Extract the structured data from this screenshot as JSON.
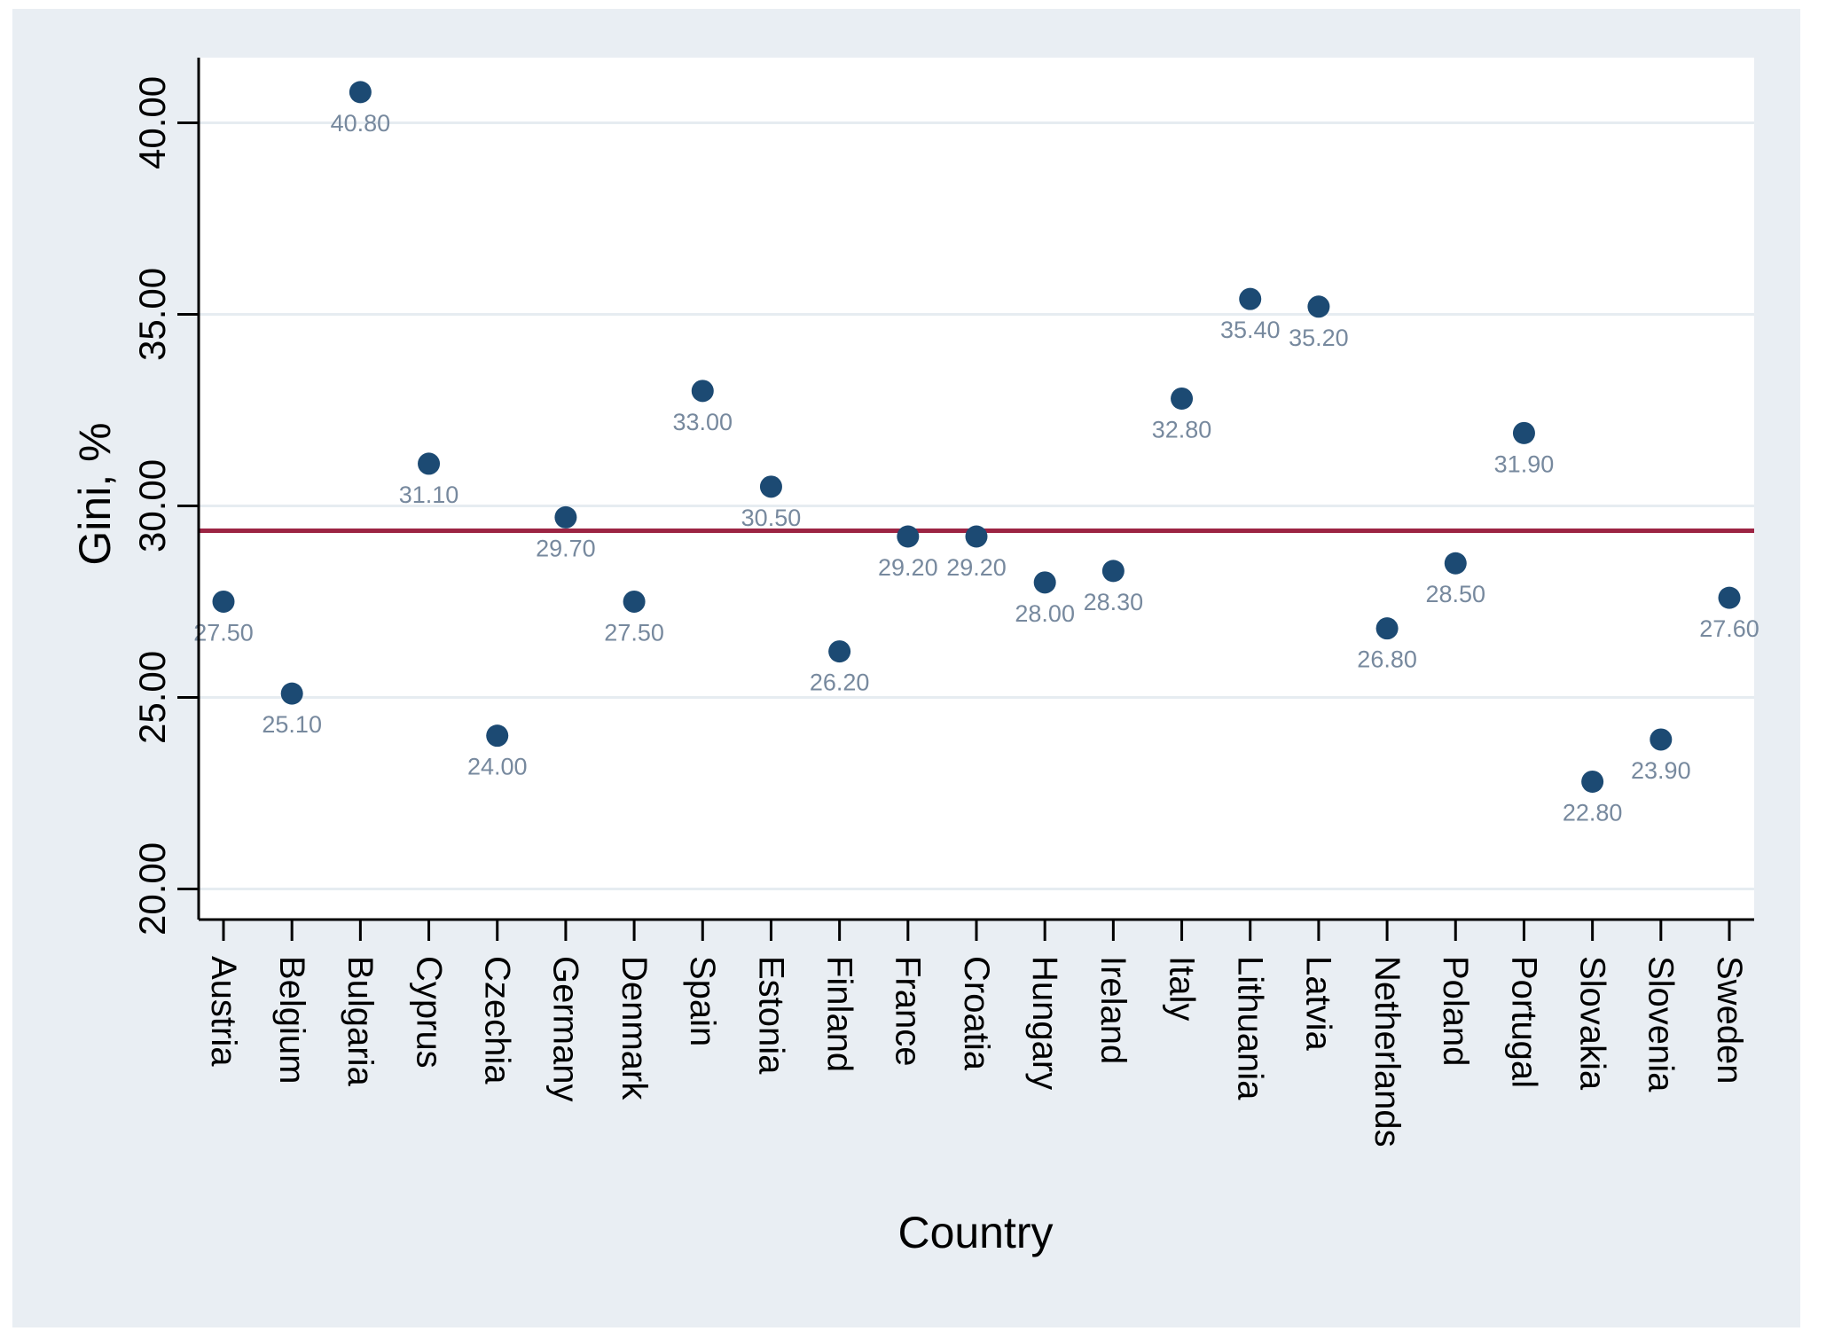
{
  "figure": {
    "background": "#ffffff",
    "panel_background": "#e9eef3",
    "plot_background": "#ffffff"
  },
  "chart_data": {
    "type": "scatter",
    "title": "",
    "xlabel": "Country",
    "ylabel": "Gini, %",
    "categories": [
      "Austria",
      "Belgium",
      "Bulgaria",
      "Cyprus",
      "Czechia",
      "Germany",
      "Denmark",
      "Spain",
      "Estonia",
      "Finland",
      "France",
      "Croatia",
      "Hungary",
      "Ireland",
      "Italy",
      "Lithuania",
      "Latvia",
      "Netherlands",
      "Poland",
      "Portugal",
      "Slovakia",
      "Slovenia",
      "Sweden"
    ],
    "values": [
      27.5,
      25.1,
      40.8,
      31.1,
      24.0,
      29.7,
      27.5,
      33.0,
      30.5,
      26.2,
      29.2,
      29.2,
      28.0,
      28.3,
      32.8,
      35.4,
      35.2,
      26.8,
      28.5,
      31.9,
      22.8,
      23.9,
      27.6
    ],
    "point_labels": [
      "27.50",
      "25.10",
      "40.80",
      "31.10",
      "24.00",
      "29.70",
      "27.50",
      "33.00",
      "30.50",
      "26.20",
      "29.20",
      "29.20",
      "28.00",
      "28.30",
      "32.80",
      "35.40",
      "35.20",
      "26.80",
      "28.50",
      "31.90",
      "22.80",
      "23.90",
      "27.60"
    ],
    "y_tick_values": [
      20,
      25,
      30,
      35,
      40
    ],
    "y_tick_labels": [
      "20.00",
      "25.00",
      "30.00",
      "35.00",
      "40.00"
    ],
    "ylim": [
      19.2,
      41.7
    ],
    "grid": true,
    "legend_position": "none",
    "mean_line": {
      "value": 29.35,
      "color": "#9c2443"
    },
    "colors": {
      "point": "#1c4a73",
      "point_label": "#77899e",
      "grid": "#e6ecf1",
      "axis": "#000000",
      "tick_label": "#000000"
    }
  }
}
